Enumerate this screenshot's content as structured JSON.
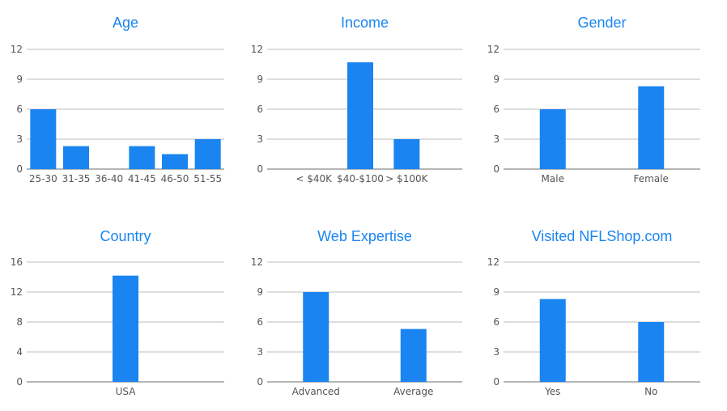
{
  "accent_color": "#1a85f0",
  "chart_data": [
    {
      "type": "bar",
      "title": "Age",
      "categories": [
        "25-30",
        "31-35",
        "36-40",
        "41-45",
        "46-50",
        "51-55"
      ],
      "values": [
        6,
        2.3,
        0,
        2.3,
        1.5,
        3
      ],
      "yticks": [
        "0",
        "3",
        "6",
        "9",
        "12"
      ],
      "ylim": [
        0,
        12
      ],
      "grid": true,
      "legend": "none"
    },
    {
      "type": "bar",
      "title": "Income",
      "categories": [
        "< $40K",
        "$40-$100",
        "> $100K"
      ],
      "values": [
        0,
        10.7,
        3
      ],
      "yticks": [
        "0",
        "3",
        "6",
        "9",
        "12"
      ],
      "ylim": [
        0,
        12
      ],
      "grid": true,
      "legend": "none"
    },
    {
      "type": "bar",
      "title": "Gender",
      "categories": [
        "Male",
        "Female"
      ],
      "values": [
        6,
        8.3
      ],
      "yticks": [
        "0",
        "3",
        "6",
        "9",
        "12"
      ],
      "ylim": [
        0,
        12
      ],
      "grid": true,
      "legend": "none"
    },
    {
      "type": "bar",
      "title": "Country",
      "categories": [
        "USA"
      ],
      "values": [
        14.2
      ],
      "yticks": [
        "0",
        "4",
        "8",
        "12",
        "16"
      ],
      "ylim": [
        0,
        16
      ],
      "grid": true,
      "legend": "none"
    },
    {
      "type": "bar",
      "title": "Web Expertise",
      "categories": [
        "Advanced",
        "Average"
      ],
      "values": [
        9,
        5.3
      ],
      "yticks": [
        "0",
        "3",
        "6",
        "9",
        "12"
      ],
      "ylim": [
        0,
        12
      ],
      "grid": true,
      "legend": "none"
    },
    {
      "type": "bar",
      "title": "Visited NFLShop.com",
      "categories": [
        "Yes",
        "No"
      ],
      "values": [
        8.3,
        6
      ],
      "yticks": [
        "0",
        "3",
        "6",
        "9",
        "12"
      ],
      "ylim": [
        0,
        12
      ],
      "grid": true,
      "legend": "none"
    }
  ]
}
